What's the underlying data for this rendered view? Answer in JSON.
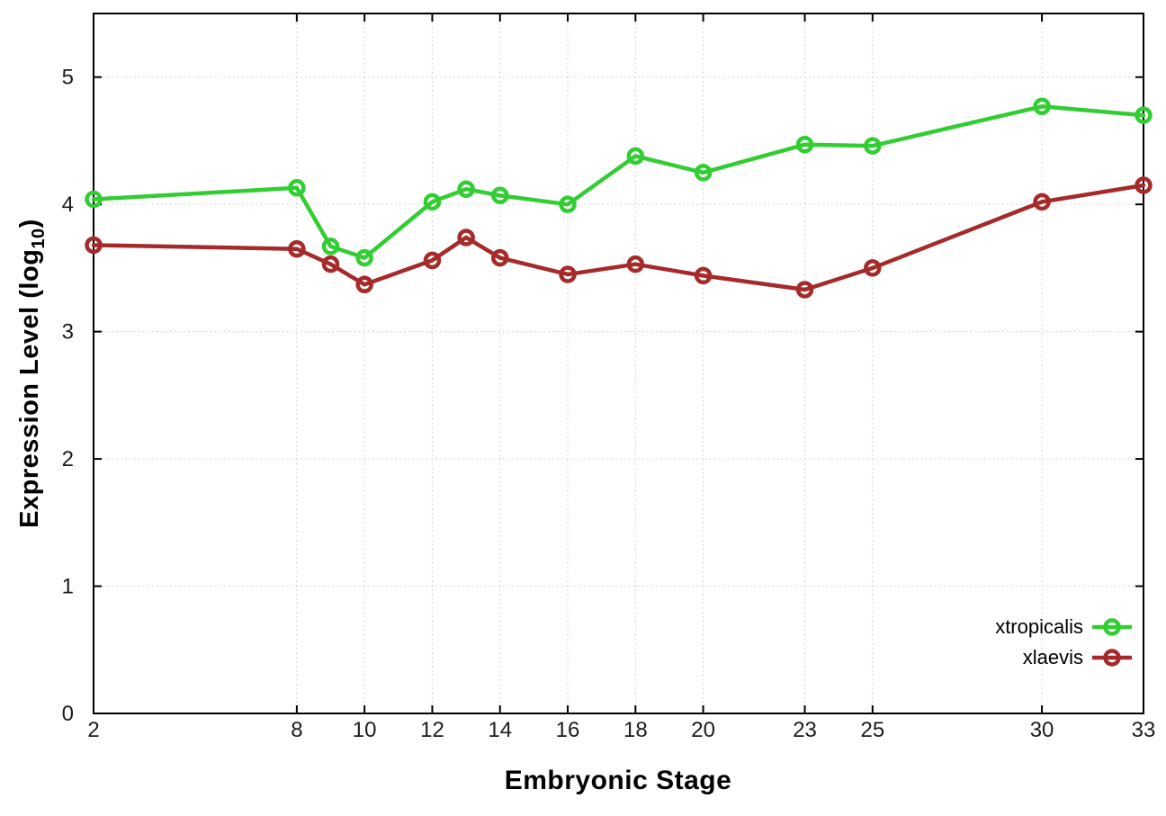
{
  "chart_data": {
    "type": "line",
    "title": "",
    "xlabel": "Embryonic Stage",
    "ylabel": "Expression Level (log10)",
    "ylabel_parts": {
      "main": "Expression Level (log",
      "sub": "10",
      "close": ")"
    },
    "x": [
      2,
      8,
      9,
      10,
      12,
      13,
      14,
      16,
      18,
      20,
      23,
      25,
      30,
      33
    ],
    "x_tick_values": [
      2,
      8,
      10,
      12,
      14,
      16,
      18,
      20,
      23,
      25,
      30,
      33
    ],
    "x_tick_labels": [
      "2",
      "8",
      "10",
      "12",
      "14",
      "16",
      "18",
      "20",
      "23",
      "25",
      "30",
      "33"
    ],
    "y_tick_values": [
      0,
      1,
      2,
      3,
      4,
      5
    ],
    "y_tick_labels": [
      "0",
      "1",
      "2",
      "3",
      "4",
      "5"
    ],
    "xlim": [
      2,
      33
    ],
    "ylim": [
      0,
      5.5
    ],
    "grid": true,
    "legend_position": "bottom-right",
    "series": [
      {
        "name": "xtropicalis",
        "color": "#32cd32",
        "values": [
          4.04,
          4.13,
          3.67,
          3.58,
          4.02,
          4.12,
          4.07,
          4.0,
          4.38,
          4.25,
          4.47,
          4.46,
          4.77,
          4.7
        ]
      },
      {
        "name": "xlaevis",
        "color": "#a52a2a",
        "values": [
          3.68,
          3.65,
          3.53,
          3.37,
          3.56,
          3.74,
          3.58,
          3.45,
          3.53,
          3.44,
          3.33,
          3.5,
          4.02,
          4.15
        ]
      }
    ],
    "style": {
      "grid_color": "#c8c8c8",
      "border_color": "#000000",
      "tick_label_color": "#1c1c1c",
      "background": "#ffffff"
    }
  }
}
